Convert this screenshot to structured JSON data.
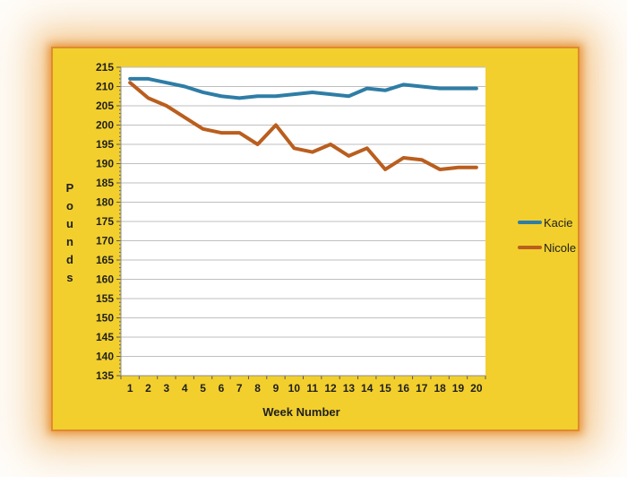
{
  "colors": {
    "panel_background": "#F2CF2D",
    "panel_border": "#E08B2D",
    "plot_background": "#FFFFFF",
    "gridline": "#BFBFBF",
    "axis": "#8C8C8C",
    "tick": "#595959",
    "text": "#1F1F1F"
  },
  "chart_data": {
    "type": "line",
    "title": "",
    "xlabel": "Week Number",
    "ylabel": "Pounds",
    "ylim": [
      135,
      215
    ],
    "ytick_step": 5,
    "yticks": [
      215,
      210,
      205,
      200,
      195,
      190,
      185,
      180,
      175,
      170,
      165,
      160,
      155,
      150,
      145,
      140,
      135
    ],
    "grid": true,
    "legend_position": "right",
    "categories": [
      "1",
      "2",
      "3",
      "4",
      "5",
      "6",
      "7",
      "8",
      "9",
      "10",
      "11",
      "12",
      "13",
      "14",
      "15",
      "16",
      "17",
      "18",
      "19",
      "20"
    ],
    "series": [
      {
        "name": "Kacie",
        "color": "#2E7DA6",
        "values": [
          212,
          212,
          211,
          210,
          208.5,
          207.5,
          207,
          207.5,
          207.5,
          208,
          208.5,
          208,
          207.5,
          209.5,
          209,
          210.5,
          210,
          209.5,
          209.5,
          209.5
        ]
      },
      {
        "name": "Nicole",
        "color": "#BA5E1E",
        "values": [
          211,
          207,
          205,
          202,
          199,
          198,
          198,
          195,
          200,
          194,
          193,
          195,
          192,
          194,
          188.5,
          191.5,
          191,
          188.5,
          189,
          189
        ]
      }
    ]
  }
}
